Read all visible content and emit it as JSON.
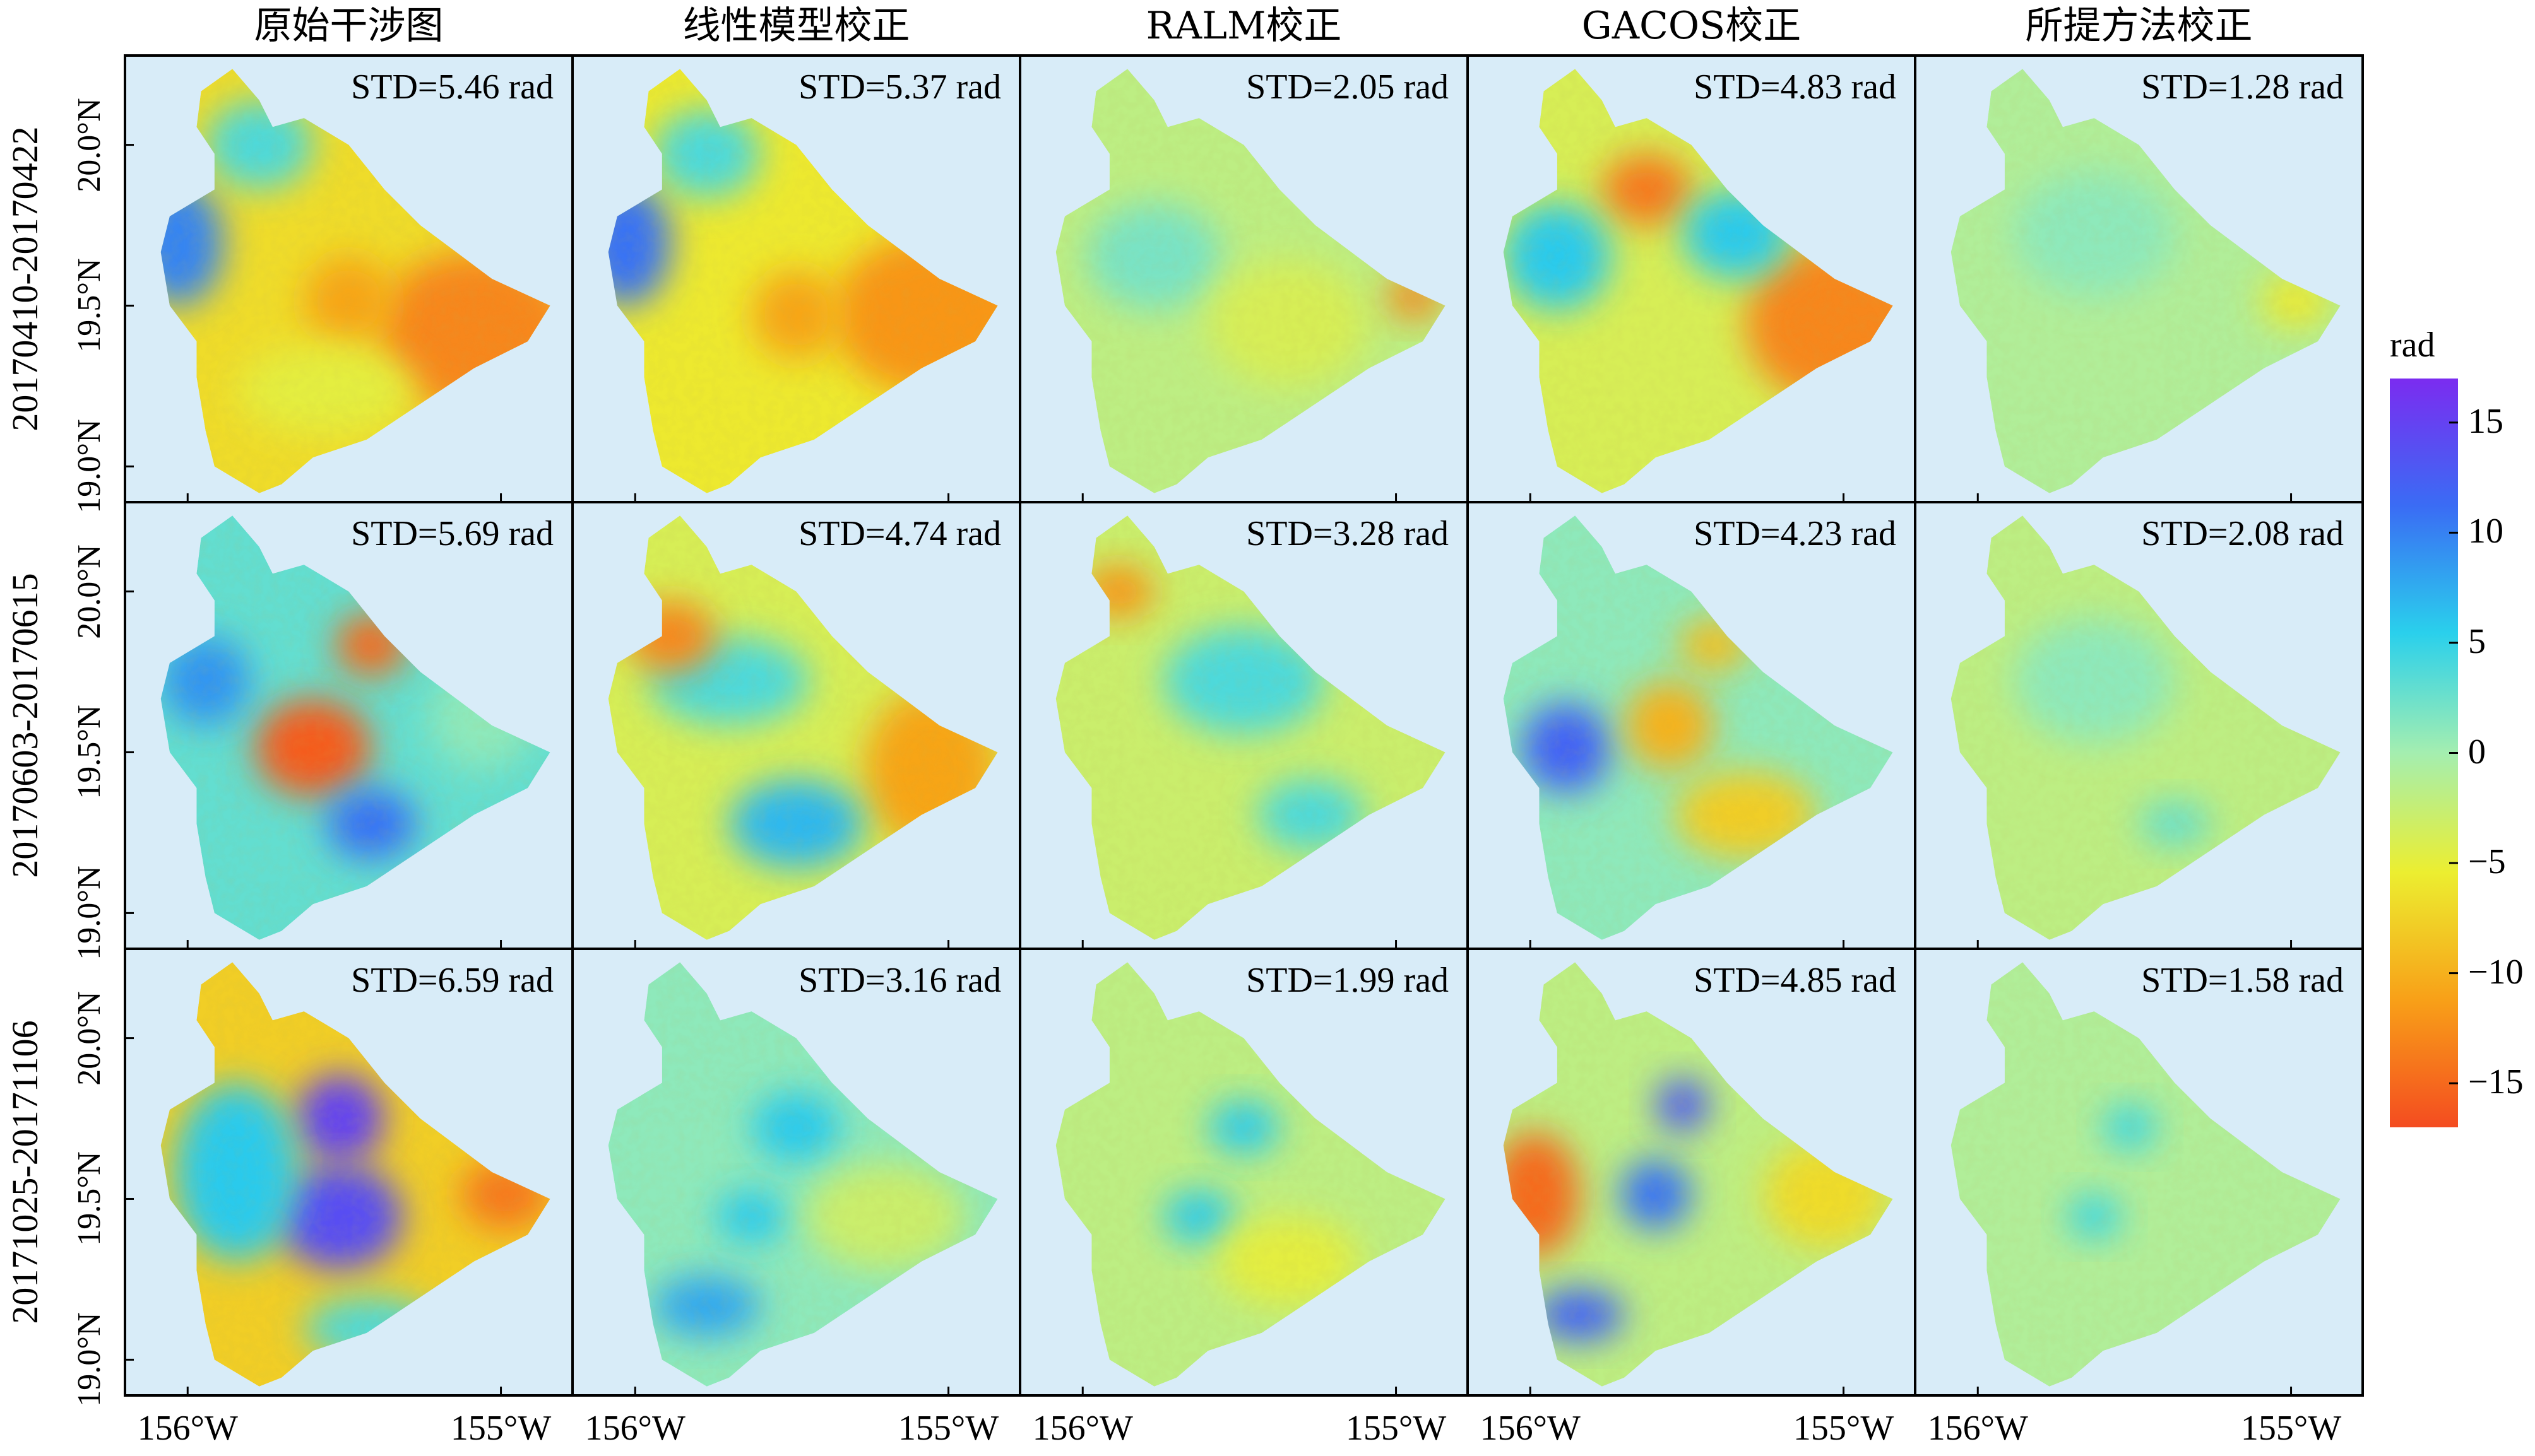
{
  "chart_data": {
    "type": "heatmap",
    "columns": [
      "原始干涉图",
      "线性模型校正",
      "RALM校正",
      "GACOS校正",
      "所提方法校正"
    ],
    "rows": [
      "20170410-20170422",
      "20170603-20170615",
      "20171025-20171106"
    ],
    "std_labels": [
      [
        "STD=5.46 rad",
        "STD=5.37 rad",
        "STD=2.05 rad",
        "STD=4.83 rad",
        "STD=1.28 rad"
      ],
      [
        "STD=5.69 rad",
        "STD=4.74 rad",
        "STD=3.28 rad",
        "STD=4.23 rad",
        "STD=2.08 rad"
      ],
      [
        "STD=6.59 rad",
        "STD=3.16 rad",
        "STD=1.99 rad",
        "STD=4.85 rad",
        "STD=1.58 rad"
      ]
    ],
    "std_values": [
      [
        5.46,
        5.37,
        2.05,
        4.83,
        1.28
      ],
      [
        5.69,
        4.74,
        3.28,
        4.23,
        2.08
      ],
      [
        6.59,
        3.16,
        1.99,
        4.85,
        1.58
      ]
    ],
    "x_ticks": [
      "156°W",
      "155°W"
    ],
    "y_ticks": [
      "19.0°N",
      "19.5°N",
      "20.0°N"
    ],
    "colorbar": {
      "unit": "rad",
      "range": [
        -17,
        17
      ],
      "ticks": [
        15,
        10,
        5,
        0,
        -5,
        -10,
        -15
      ],
      "tick_labels": [
        "15",
        "10",
        "5",
        "0",
        "−5",
        "−10",
        "−15"
      ],
      "colormap": [
        "#7b2cf0",
        "#3a6cf4",
        "#2ad0ec",
        "#a4eeb0",
        "#ecee30",
        "#f8a018",
        "#f44c20"
      ]
    },
    "background_color": "#d8ecf8"
  }
}
